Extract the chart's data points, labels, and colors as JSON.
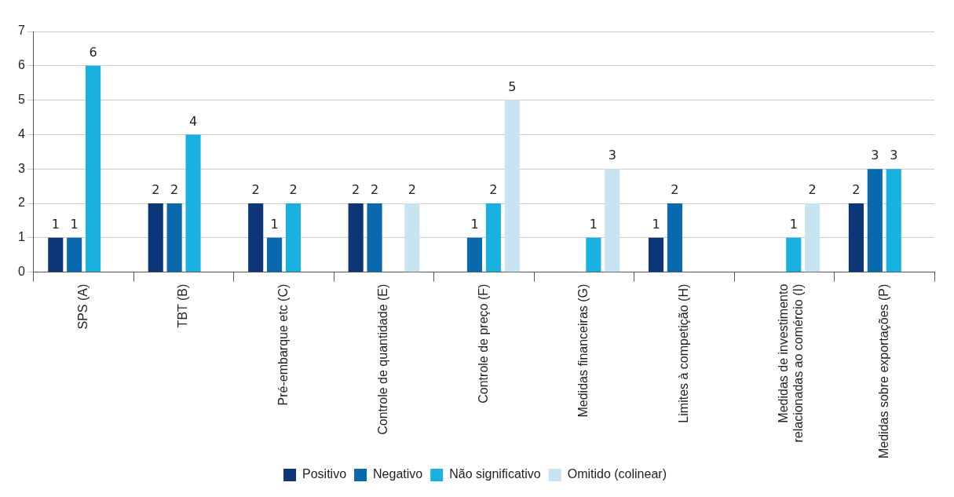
{
  "chart_data": {
    "type": "bar",
    "categories": [
      "SPS (A)",
      "TBT (B)",
      "Pré-embarque etc (C)",
      "Controle de quantidade (E)",
      "Controle de preço (F)",
      "Medidas financeiras (G)",
      "Limites à competição (H)",
      "Medidas de investimento relacionadas ao comércio (I)",
      "Medidas sobre exportações (P)"
    ],
    "series": [
      {
        "name": "Positivo",
        "color": "#0c3678",
        "values": [
          1,
          2,
          2,
          2,
          null,
          null,
          1,
          null,
          2
        ]
      },
      {
        "name": "Negativo",
        "color": "#0a69ac",
        "values": [
          1,
          2,
          1,
          2,
          1,
          null,
          2,
          null,
          3
        ]
      },
      {
        "name": "Não significativo",
        "color": "#19b1e0",
        "values": [
          6,
          4,
          2,
          null,
          2,
          1,
          null,
          1,
          3
        ]
      },
      {
        "name": "Omitido (colinear)",
        "color": "#c7e4f0",
        "values": [
          null,
          null,
          null,
          2,
          5,
          3,
          null,
          2,
          null
        ]
      }
    ],
    "ylim": [
      0,
      7
    ],
    "yticks": [
      0,
      1,
      2,
      3,
      4,
      5,
      6,
      7
    ],
    "grid": "y",
    "legend": "bottom",
    "data_labels": true
  }
}
